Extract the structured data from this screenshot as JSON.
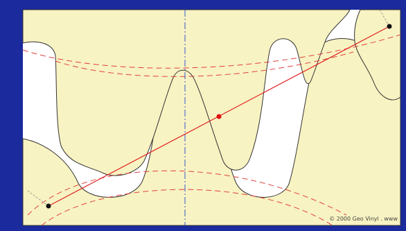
{
  "watermark": "© 2000 Geo Vinyl . www"
}
